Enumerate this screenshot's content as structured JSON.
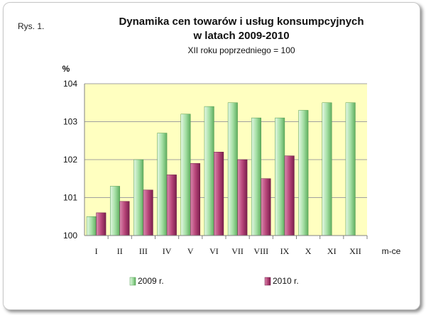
{
  "figure_label": "Rys. 1.",
  "title_line1": "Dynamika cen towarów i usług konsumpcyjnych",
  "title_line2": "w latach 2009-2010",
  "subtitle": "XII roku poprzedniego = 100",
  "colors": {
    "plot_background": "#ffffc0",
    "series_2009": "#a6e0a6",
    "series_2010": "#b8467a",
    "axis": "#808080",
    "grid": "#a0a0a0"
  },
  "chart_data": {
    "type": "bar",
    "ylabel": "%",
    "xlabel": "m-ce",
    "ylim": [
      100,
      104
    ],
    "yticks": [
      100,
      101,
      102,
      103,
      104
    ],
    "grid": true,
    "legend_position": "bottom",
    "categories": [
      "I",
      "II",
      "III",
      "IV",
      "V",
      "VI",
      "VII",
      "VIII",
      "IX",
      "X",
      "XI",
      "XII"
    ],
    "series": [
      {
        "name": "2009 r.",
        "values": [
          100.5,
          101.3,
          102.0,
          102.7,
          103.2,
          103.4,
          103.5,
          103.1,
          103.1,
          103.3,
          103.5,
          103.5
        ]
      },
      {
        "name": "2010 r.",
        "values": [
          100.6,
          100.9,
          101.2,
          101.6,
          101.9,
          102.2,
          102.0,
          101.5,
          102.1,
          null,
          null,
          null
        ]
      }
    ]
  }
}
